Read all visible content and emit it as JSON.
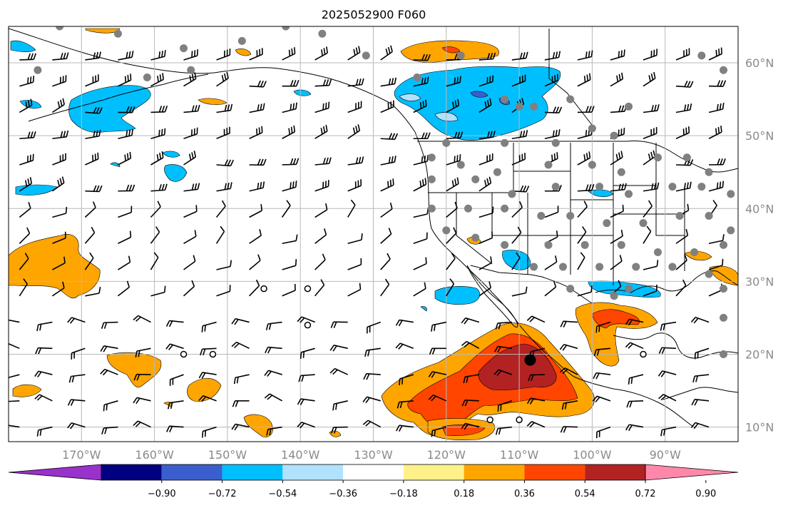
{
  "title": "2025052900 F060",
  "map": {
    "lon_range": [
      -180,
      -80
    ],
    "lat_range": [
      8,
      65
    ],
    "lon_ticks": [
      {
        "lon": -170,
        "label": "170°W"
      },
      {
        "lon": -160,
        "label": "160°W"
      },
      {
        "lon": -150,
        "label": "150°W"
      },
      {
        "lon": -140,
        "label": "140°W"
      },
      {
        "lon": -130,
        "label": "130°W"
      },
      {
        "lon": -120,
        "label": "120°W"
      },
      {
        "lon": -110,
        "label": "110°W"
      },
      {
        "lon": -100,
        "label": "100°W"
      },
      {
        "lon": -90,
        "label": "90°W"
      }
    ],
    "lat_ticks": [
      {
        "lat": 60,
        "label": "60°N"
      },
      {
        "lat": 50,
        "label": "50°N"
      },
      {
        "lat": 40,
        "label": "40°N"
      },
      {
        "lat": 30,
        "label": "30°N"
      },
      {
        "lat": 20,
        "label": "20°N"
      },
      {
        "lat": 10,
        "label": "10°N"
      }
    ],
    "grid": true
  },
  "colorbar": {
    "colors": [
      "#9932cc",
      "#000080",
      "#3a5fcd",
      "#00bfff",
      "#b0e2ff",
      "#ffffff",
      "#fff08a",
      "#ffa500",
      "#ff4500",
      "#b22222",
      "#ff88aa"
    ],
    "labels": [
      "−0.90",
      "−0.72",
      "−0.54",
      "−0.36",
      "−0.18",
      "0.18",
      "0.36",
      "0.54",
      "0.72",
      "0.90"
    ]
  },
  "fill_colors": {
    "neg_light": "#b0e2ff",
    "neg_mid": "#00bfff",
    "neg_dark": "#3a5fcd",
    "pos_light": "#fff08a",
    "pos_mid": "#ffa500",
    "pos_high": "#ff4500",
    "pos_max": "#b22222"
  },
  "stations": {
    "color": "#808080",
    "points": [
      [
        -165,
        64
      ],
      [
        -156,
        62
      ],
      [
        -148,
        63
      ],
      [
        -142,
        65
      ],
      [
        -137,
        64
      ],
      [
        -118,
        61
      ],
      [
        -124,
        58
      ],
      [
        -131,
        61
      ],
      [
        -112,
        55
      ],
      [
        -110,
        54
      ],
      [
        -108,
        54
      ],
      [
        -103,
        55
      ],
      [
        -95,
        54
      ],
      [
        -100,
        51
      ],
      [
        -97,
        50
      ],
      [
        -105,
        49
      ],
      [
        -112,
        49
      ],
      [
        -120,
        49
      ],
      [
        -122,
        47
      ],
      [
        -118,
        46
      ],
      [
        -113,
        45
      ],
      [
        -106,
        46
      ],
      [
        -100,
        46
      ],
      [
        -96,
        45
      ],
      [
        -91,
        47
      ],
      [
        -87,
        47
      ],
      [
        -84,
        45
      ],
      [
        -122,
        44
      ],
      [
        -116,
        44
      ],
      [
        -111,
        42
      ],
      [
        -105,
        43
      ],
      [
        -99,
        43
      ],
      [
        -95,
        42
      ],
      [
        -89,
        43
      ],
      [
        -85,
        43
      ],
      [
        -81,
        42
      ],
      [
        -122,
        40
      ],
      [
        -117,
        40
      ],
      [
        -112,
        40
      ],
      [
        -107,
        39
      ],
      [
        -103,
        39
      ],
      [
        -98,
        38
      ],
      [
        -93,
        38
      ],
      [
        -88,
        39
      ],
      [
        -84,
        39
      ],
      [
        -81,
        37
      ],
      [
        -120,
        37
      ],
      [
        -116,
        36
      ],
      [
        -112,
        35
      ],
      [
        -106,
        35
      ],
      [
        -101,
        35
      ],
      [
        -96,
        35
      ],
      [
        -91,
        34
      ],
      [
        -86,
        34
      ],
      [
        -82,
        35
      ],
      [
        -108,
        32
      ],
      [
        -104,
        32
      ],
      [
        -99,
        32
      ],
      [
        -94,
        32
      ],
      [
        -89,
        32
      ],
      [
        -84,
        31
      ],
      [
        -82,
        29
      ],
      [
        -97,
        28
      ],
      [
        -95,
        29
      ],
      [
        -103,
        29
      ],
      [
        -82,
        25
      ],
      [
        -82,
        20
      ],
      [
        -176,
        59
      ],
      [
        -173,
        65
      ],
      [
        -161,
        58
      ],
      [
        -155,
        59
      ],
      [
        -82,
        59
      ],
      [
        -85,
        61
      ]
    ]
  },
  "calm_points": [
    [
      -139,
      29
    ],
    [
      -145,
      29
    ],
    [
      -139,
      24
    ],
    [
      -156,
      20
    ],
    [
      -152,
      20
    ],
    [
      -93,
      20
    ],
    [
      -114,
      11
    ],
    [
      -110,
      11
    ]
  ],
  "big_marker": [
    -108.5,
    19.2
  ],
  "wind_barbs": {
    "color": "#000000",
    "start_lon": -180,
    "end_lon": -80,
    "step_lon": 4.5,
    "start_lat": 10,
    "end_lat": 64,
    "step_lat": 3.6
  }
}
